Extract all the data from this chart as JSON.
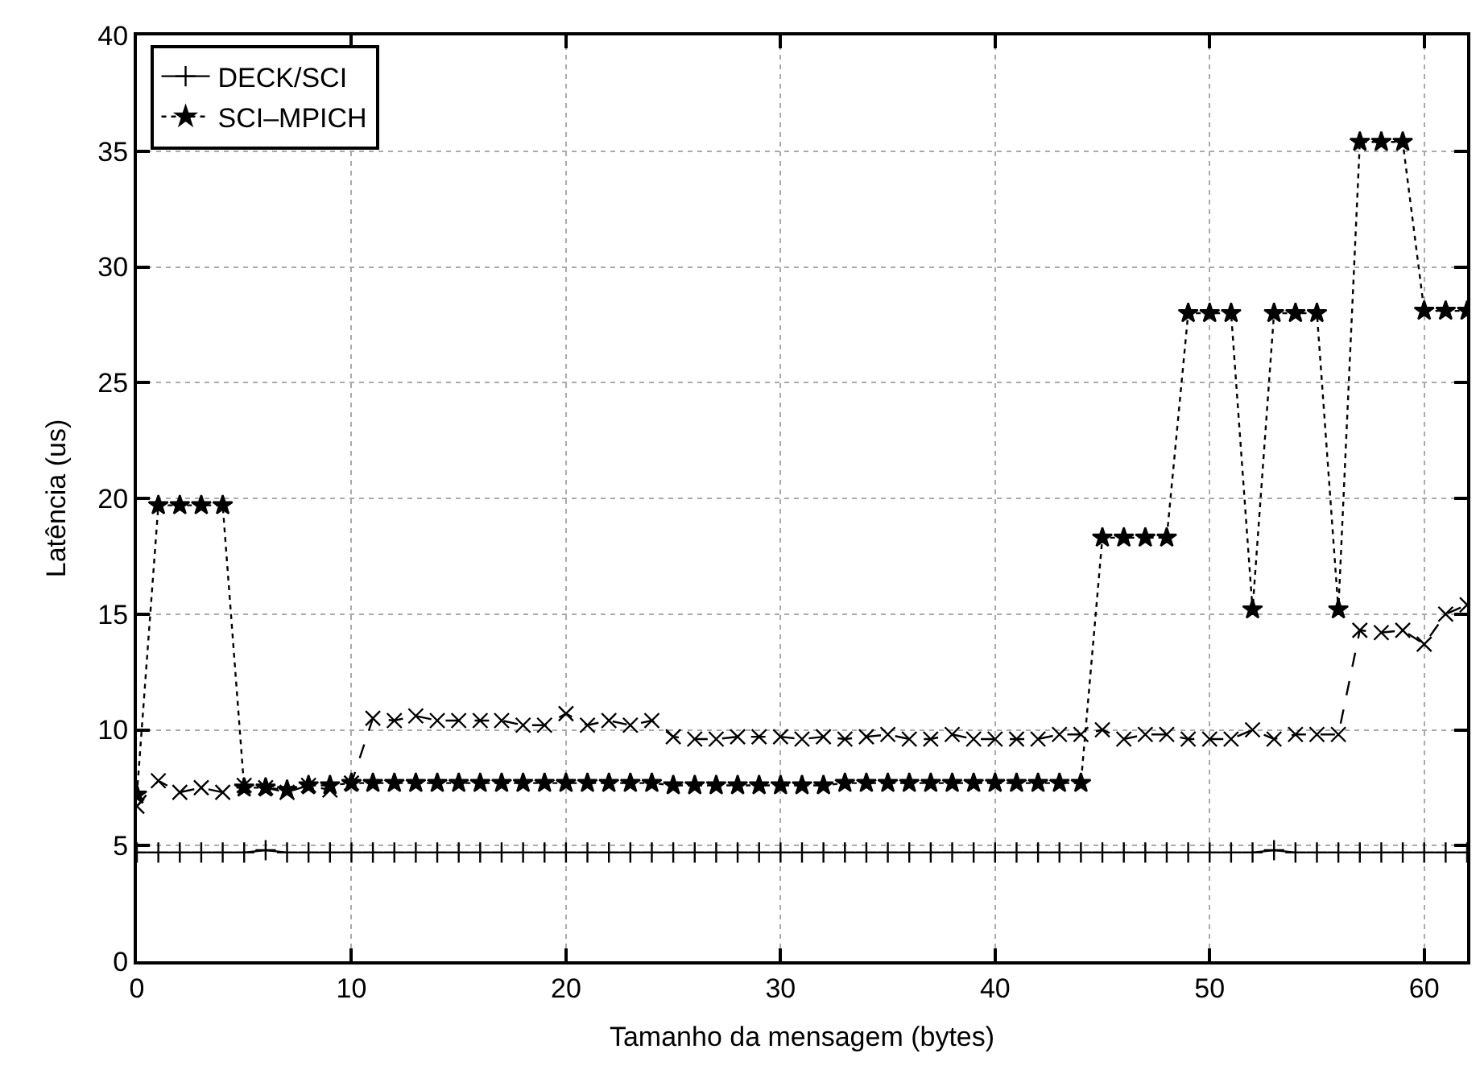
{
  "chart_data": {
    "type": "line",
    "xlabel": "Tamanho da mensagem (bytes)",
    "ylabel": "Latência (us)",
    "x": [
      0,
      1,
      2,
      3,
      4,
      5,
      6,
      7,
      8,
      9,
      10,
      11,
      12,
      13,
      14,
      15,
      16,
      17,
      18,
      19,
      20,
      21,
      22,
      23,
      24,
      25,
      26,
      27,
      28,
      29,
      30,
      31,
      32,
      33,
      34,
      35,
      36,
      37,
      38,
      39,
      40,
      41,
      42,
      43,
      44,
      45,
      46,
      47,
      48,
      49,
      50,
      51,
      52,
      53,
      54,
      55,
      56,
      57,
      58,
      59,
      60,
      61,
      62
    ],
    "series": [
      {
        "name": "DECK/SCI",
        "color": "#000000",
        "marker": "cross",
        "line_style": "solid",
        "values": [
          4.7,
          4.7,
          4.7,
          4.7,
          4.7,
          4.7,
          4.8,
          4.7,
          4.7,
          4.7,
          4.7,
          4.7,
          4.7,
          4.7,
          4.7,
          4.7,
          4.7,
          4.7,
          4.7,
          4.7,
          4.7,
          4.7,
          4.7,
          4.7,
          4.7,
          4.7,
          4.7,
          4.7,
          4.7,
          4.7,
          4.7,
          4.7,
          4.7,
          4.7,
          4.7,
          4.7,
          4.7,
          4.7,
          4.7,
          4.7,
          4.7,
          4.7,
          4.7,
          4.7,
          4.7,
          4.7,
          4.7,
          4.7,
          4.7,
          4.7,
          4.7,
          4.7,
          4.7,
          4.8,
          4.7,
          4.7,
          4.7,
          4.7,
          4.7,
          4.7,
          4.7,
          4.7,
          4.7
        ]
      },
      {
        "color": "#000000",
        "marker": "cross",
        "line_style": "dashed",
        "values": [
          6.7,
          7.8,
          7.3,
          7.5,
          7.3,
          7.6,
          7.5,
          7.3,
          7.6,
          7.4,
          7.7,
          10.5,
          10.4,
          10.6,
          10.4,
          10.4,
          10.4,
          10.4,
          10.2,
          10.2,
          10.7,
          10.2,
          10.4,
          10.2,
          10.4,
          9.7,
          9.6,
          9.6,
          9.7,
          9.7,
          9.7,
          9.6,
          9.7,
          9.6,
          9.7,
          9.8,
          9.6,
          9.6,
          9.8,
          9.6,
          9.6,
          9.6,
          9.6,
          9.8,
          9.8,
          10.0,
          9.6,
          9.8,
          9.8,
          9.6,
          9.6,
          9.6,
          10.0,
          9.6,
          9.8,
          9.8,
          9.8,
          14.3,
          14.2,
          14.3,
          13.7,
          15.0,
          15.4
        ]
      },
      {
        "name": "SCI–MPICH",
        "color": "#000000",
        "marker": "star",
        "line_style": "dotted",
        "values": [
          7.2,
          19.7,
          19.7,
          19.7,
          19.7,
          7.5,
          7.5,
          7.4,
          7.6,
          7.6,
          7.7,
          7.7,
          7.7,
          7.7,
          7.7,
          7.7,
          7.7,
          7.7,
          7.7,
          7.7,
          7.7,
          7.7,
          7.7,
          7.7,
          7.7,
          7.6,
          7.6,
          7.6,
          7.6,
          7.6,
          7.6,
          7.6,
          7.6,
          7.7,
          7.7,
          7.7,
          7.7,
          7.7,
          7.7,
          7.7,
          7.7,
          7.7,
          7.7,
          7.7,
          7.7,
          18.3,
          18.3,
          18.3,
          18.3,
          28.0,
          28.0,
          28.0,
          15.2,
          28.0,
          28.0,
          28.0,
          15.2,
          35.4,
          35.4,
          35.4,
          28.1,
          28.1,
          28.1
        ]
      }
    ],
    "xlim": [
      0,
      62
    ],
    "xticks": [
      0,
      10,
      20,
      30,
      40,
      50,
      60
    ],
    "ylim": [
      0,
      40
    ],
    "yticks": [
      0,
      5,
      10,
      15,
      20,
      25,
      30,
      35,
      40
    ],
    "grid": true,
    "legend": "top left"
  }
}
